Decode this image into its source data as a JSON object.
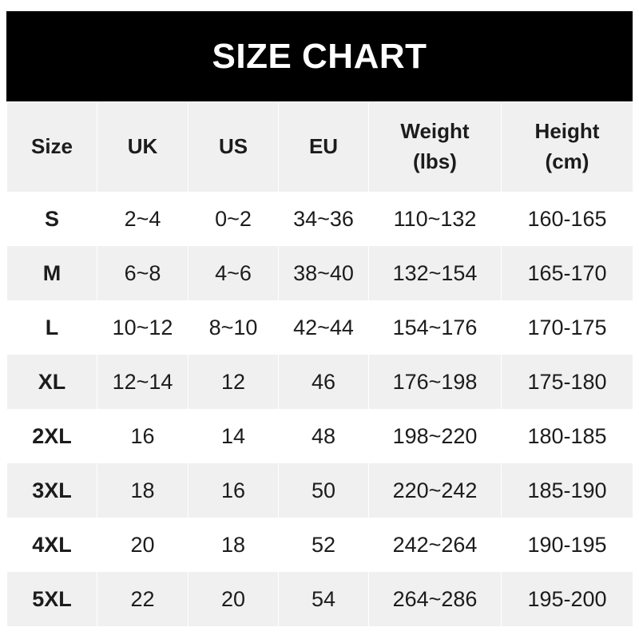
{
  "title": "SIZE CHART",
  "headers": [
    "Size",
    "UK",
    "US",
    "EU",
    "Weight\n(lbs)",
    "Height\n(cm)"
  ],
  "header_lines": [
    [
      "Size"
    ],
    [
      "UK"
    ],
    [
      "US"
    ],
    [
      "EU"
    ],
    [
      "Weight",
      "(lbs)"
    ],
    [
      "Height",
      "(cm)"
    ]
  ],
  "rows": [
    [
      "S",
      "2~4",
      "0~2",
      "34~36",
      "110~132",
      "160-165"
    ],
    [
      "M",
      "6~8",
      "4~6",
      "38~40",
      "132~154",
      "165-170"
    ],
    [
      "L",
      "10~12",
      "8~10",
      "42~44",
      "154~176",
      "170-175"
    ],
    [
      "XL",
      "12~14",
      "12",
      "46",
      "176~198",
      "175-180"
    ],
    [
      "2XL",
      "16",
      "14",
      "48",
      "198~220",
      "180-185"
    ],
    [
      "3XL",
      "18",
      "16",
      "50",
      "220~242",
      "185-190"
    ],
    [
      "4XL",
      "20",
      "18",
      "52",
      "242~264",
      "190-195"
    ],
    [
      "5XL",
      "22",
      "20",
      "54",
      "264~286",
      "195-200"
    ]
  ],
  "colors": {
    "header_bg": "#000000",
    "stripe": "#f0f0f0",
    "text": "#1c1c1c"
  }
}
